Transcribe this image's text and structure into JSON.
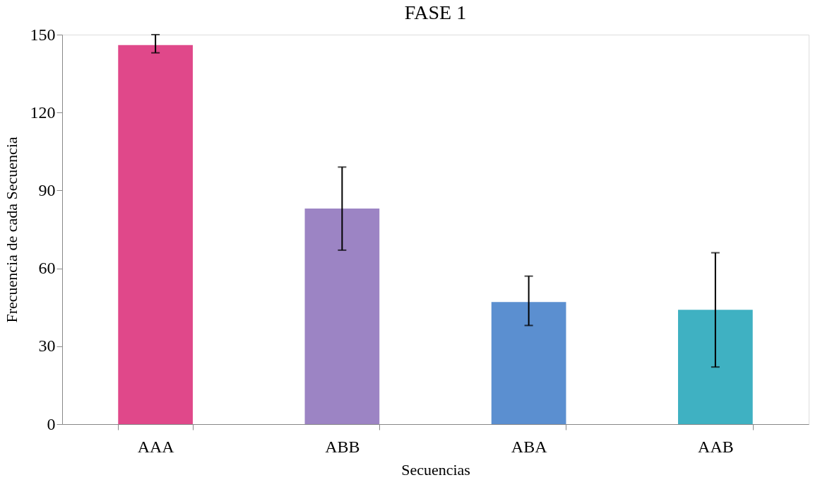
{
  "chart_data": {
    "type": "bar",
    "title": "FASE 1",
    "xlabel": "Secuencias",
    "ylabel": "Frecuencia de cada Secuencia",
    "categories": [
      "AAA",
      "ABB",
      "ABA",
      "AAB"
    ],
    "values": [
      146,
      83,
      47,
      44
    ],
    "colors": [
      "#e0488a",
      "#9c84c4",
      "#5b8fd0",
      "#3fb1c2"
    ],
    "errors": [
      [
        143,
        150
      ],
      [
        67,
        99
      ],
      [
        38,
        57
      ],
      [
        22,
        66
      ]
    ],
    "ylim": [
      0,
      150
    ],
    "yticks": [
      0,
      30,
      60,
      90,
      120,
      150
    ],
    "grid": false
  }
}
